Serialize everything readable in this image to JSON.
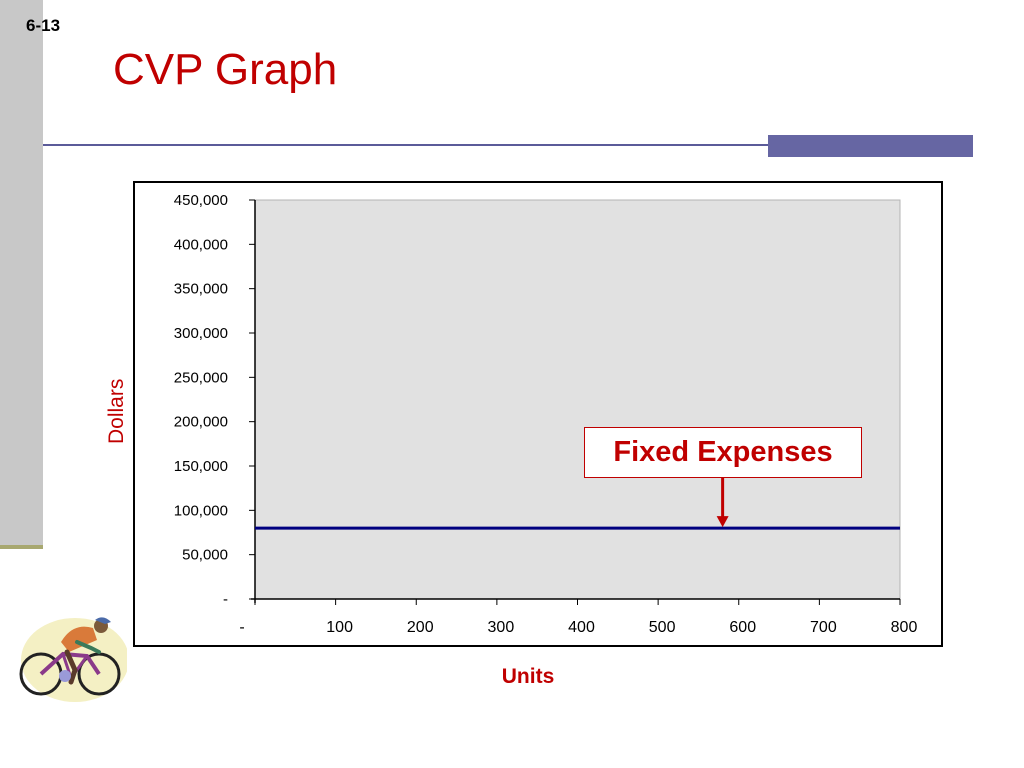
{
  "slide": {
    "number": "6-13",
    "title": "CVP Graph",
    "callout": "Fixed Expenses"
  },
  "colors": {
    "title_red": "#c00000",
    "line_navy": "#000080",
    "plot_bg": "#e1e1e1",
    "rule": "#6666a3"
  },
  "icons": [
    "cyclist-clipart"
  ],
  "chart_data": {
    "type": "line",
    "xlabel": "Units",
    "ylabel": "Dollars",
    "x_ticks": [
      "-",
      "100",
      "200",
      "300",
      "400",
      "500",
      "600",
      "700",
      "800"
    ],
    "y_ticks": [
      "-",
      "50,000",
      "100,000",
      "150,000",
      "200,000",
      "250,000",
      "300,000",
      "350,000",
      "400,000",
      "450,000"
    ],
    "xlim": [
      0,
      800
    ],
    "ylim": [
      0,
      450000
    ],
    "series": [
      {
        "x": [
          0,
          800
        ],
        "y": [
          80000,
          80000
        ],
        "color": "#000080"
      }
    ],
    "annotations": [
      {
        "text": "Fixed Expenses",
        "points_to_x": 580,
        "points_to_y": 80000
      }
    ],
    "grid": false,
    "legend": "none"
  }
}
